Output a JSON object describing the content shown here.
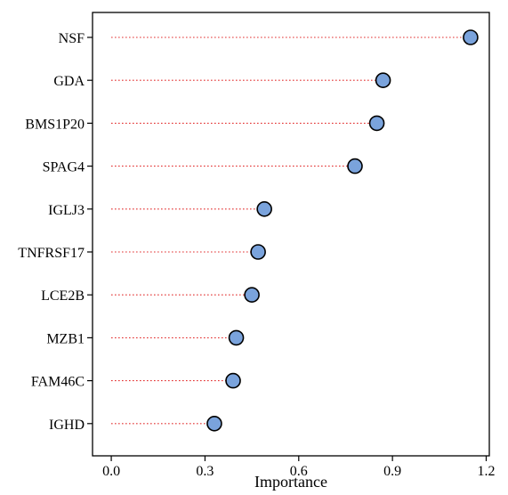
{
  "chart_data": {
    "type": "scatter",
    "subtype": "lollipop-horizontal",
    "title": "",
    "xlabel": "Importance",
    "ylabel": "",
    "xlim": [
      -0.06,
      1.21
    ],
    "x_ticks": [
      0.0,
      0.3,
      0.6,
      0.9,
      1.2
    ],
    "x_tick_labels": [
      "0.0",
      "0.3",
      "0.6",
      "0.9",
      "1.2"
    ],
    "grid": false,
    "legend": "none",
    "categories": [
      "NSF",
      "GDA",
      "BMS1P20",
      "SPAG4",
      "IGLJ3",
      "TNFRSF17",
      "LCE2B",
      "MZB1",
      "FAM46C",
      "IGHD"
    ],
    "values": [
      1.15,
      0.87,
      0.85,
      0.78,
      0.49,
      0.47,
      0.45,
      0.4,
      0.39,
      0.33
    ],
    "stem_start": 0.0,
    "colors": {
      "marker_fill": "#7aa3dc",
      "marker_edge": "#000000",
      "stem": "#e02020",
      "axis": "#000000"
    }
  }
}
